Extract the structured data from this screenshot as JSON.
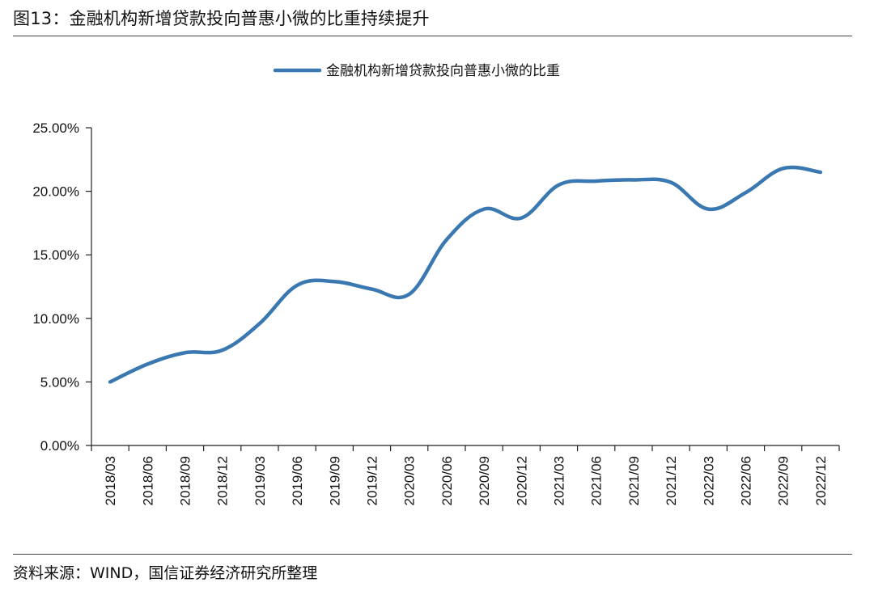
{
  "figure": {
    "title": "图13：金融机构新增贷款投向普惠小微的比重持续提升",
    "source": "资料来源：WIND，国信证券经济研究所整理"
  },
  "chart_data": {
    "type": "line",
    "title": "",
    "xlabel": "",
    "ylabel": "",
    "categories": [
      "2018/03",
      "2018/06",
      "2018/09",
      "2018/12",
      "2019/03",
      "2019/06",
      "2019/09",
      "2019/12",
      "2020/03",
      "2020/06",
      "2020/09",
      "2020/12",
      "2021/03",
      "2021/06",
      "2021/09",
      "2021/12",
      "2022/03",
      "2022/06",
      "2022/09",
      "2022/12"
    ],
    "series": [
      {
        "name": "金融机构新增贷款投向普惠小微的比重",
        "color": "#3a78b1",
        "values": [
          5.0,
          6.4,
          7.3,
          7.5,
          9.6,
          12.6,
          12.9,
          12.3,
          11.9,
          16.2,
          18.6,
          17.9,
          20.5,
          20.8,
          20.9,
          20.7,
          18.6,
          19.9,
          21.8,
          21.5
        ]
      }
    ],
    "ylim": [
      0,
      25
    ],
    "yticks": [
      0,
      5,
      10,
      15,
      20,
      25
    ],
    "ytick_labels": [
      "0.00%",
      "5.00%",
      "10.00%",
      "15.00%",
      "20.00%",
      "25.00%"
    ],
    "grid": false,
    "legend_position": "top-center"
  }
}
